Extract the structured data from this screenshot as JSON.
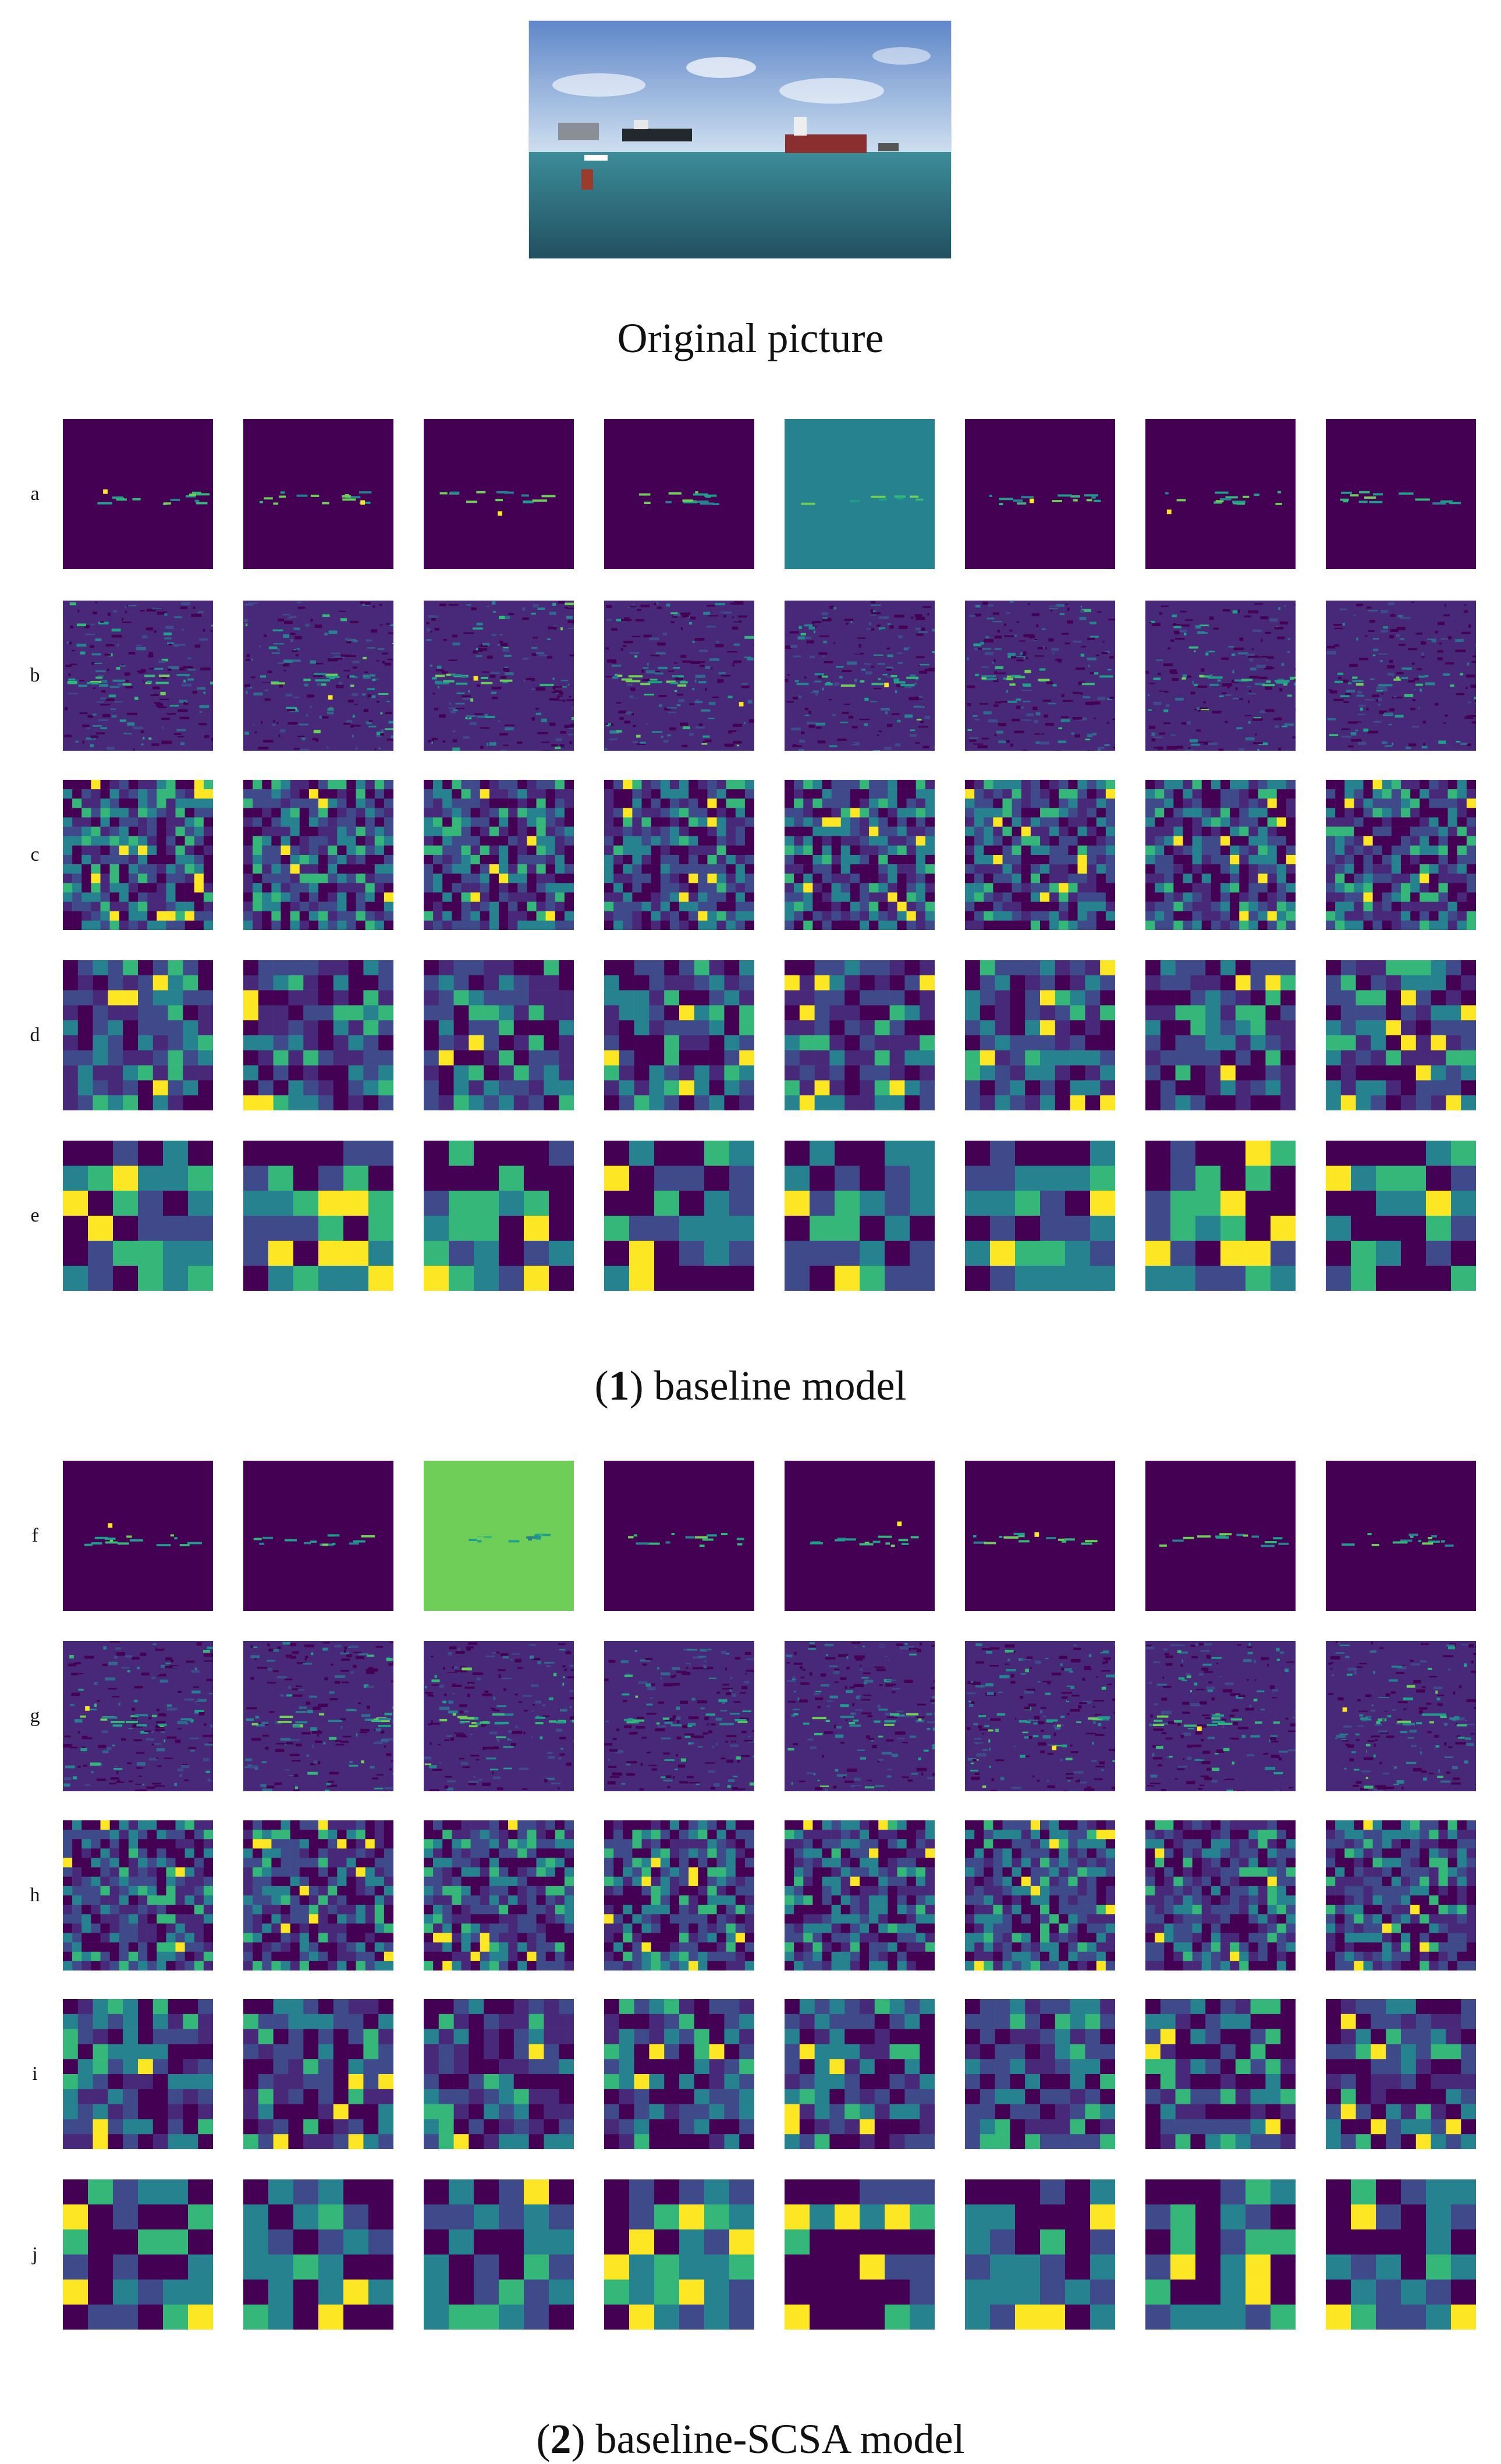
{
  "original_caption": "Original picture",
  "section1": {
    "num": "1",
    "label": "baseline model"
  },
  "section2": {
    "num": "2",
    "label": "baseline-SCSA model"
  },
  "row_labels": [
    "a",
    "b",
    "c",
    "d",
    "e",
    "f",
    "g",
    "h",
    "i",
    "j"
  ],
  "grid_cols": 8,
  "colormap": [
    "#440154",
    "#482878",
    "#3e4a89",
    "#31688e",
    "#26828e",
    "#1f9e89",
    "#35b779",
    "#6ece58",
    "#b5de2b",
    "#fde725"
  ],
  "rows": [
    {
      "label": "a",
      "res": "fine",
      "style": "low-dark"
    },
    {
      "label": "b",
      "res": "fine",
      "style": "edges"
    },
    {
      "label": "c",
      "res": "16",
      "style": "patchy"
    },
    {
      "label": "d",
      "res": "10",
      "style": "patchy"
    },
    {
      "label": "e",
      "res": "6",
      "style": "blocky"
    },
    {
      "label": "f",
      "res": "fine",
      "style": "low-dark"
    },
    {
      "label": "g",
      "res": "fine",
      "style": "edges"
    },
    {
      "label": "h",
      "res": "16",
      "style": "patchy"
    },
    {
      "label": "i",
      "res": "10",
      "style": "patchy"
    },
    {
      "label": "j",
      "res": "6",
      "style": "blocky"
    }
  ]
}
